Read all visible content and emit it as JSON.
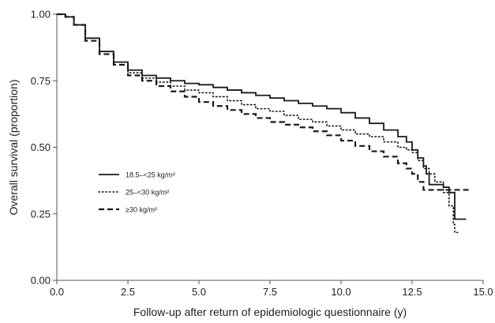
{
  "chart_data": {
    "type": "line",
    "title": "",
    "xlabel": "Follow-up after return of epidemiologic questionnaire (y)",
    "ylabel": "Overall survival (proportion)",
    "xlim": [
      0,
      15
    ],
    "ylim": [
      0,
      1
    ],
    "x_ticks": [
      0,
      2.5,
      5,
      7.5,
      10,
      12.5,
      15
    ],
    "x_tick_labels": [
      "0.0",
      "2.5",
      "5.0",
      "7.5",
      "10.0",
      "12.5",
      "15.0"
    ],
    "y_ticks": [
      0,
      0.25,
      0.5,
      0.75,
      1
    ],
    "y_tick_labels": [
      "0.00",
      "0.25",
      "0.50",
      "0.75",
      "1.00"
    ],
    "grid": false,
    "legend_position": "center-left",
    "series": [
      {
        "name": "18.5–<25 kg/m²",
        "style": "solid",
        "color": "#1a1a1a",
        "x": [
          0,
          0.3,
          0.6,
          1.0,
          1.5,
          2.0,
          2.5,
          3.0,
          3.5,
          4.0,
          4.5,
          5.0,
          5.5,
          6.0,
          6.5,
          7.0,
          7.5,
          8.0,
          8.5,
          9.0,
          9.5,
          10.0,
          10.5,
          11.0,
          11.5,
          12.0,
          12.3,
          12.5,
          12.7,
          12.9,
          13.0,
          13.1,
          13.6,
          13.8,
          14.0,
          14.1,
          14.4
        ],
        "y": [
          1.0,
          0.99,
          0.96,
          0.91,
          0.86,
          0.82,
          0.79,
          0.77,
          0.76,
          0.75,
          0.74,
          0.735,
          0.725,
          0.715,
          0.705,
          0.695,
          0.685,
          0.675,
          0.665,
          0.655,
          0.645,
          0.63,
          0.61,
          0.59,
          0.565,
          0.54,
          0.52,
          0.49,
          0.46,
          0.43,
          0.4,
          0.36,
          0.35,
          0.33,
          0.23,
          0.23,
          0.23
        ]
      },
      {
        "name": "25–<30 kg/m²",
        "style": "dotted",
        "color": "#1a1a1a",
        "x": [
          0,
          0.3,
          0.6,
          1.0,
          1.5,
          2.0,
          2.5,
          3.0,
          3.5,
          4.0,
          4.5,
          5.0,
          5.5,
          6.0,
          6.5,
          7.0,
          7.5,
          8.0,
          8.5,
          9.0,
          9.5,
          10.0,
          10.5,
          11.0,
          11.5,
          12.0,
          12.3,
          12.5,
          12.7,
          12.9,
          13.1,
          13.3,
          13.6,
          13.8,
          13.95,
          14.0,
          14.1
        ],
        "y": [
          1.0,
          0.99,
          0.96,
          0.91,
          0.86,
          0.82,
          0.78,
          0.76,
          0.745,
          0.73,
          0.715,
          0.705,
          0.69,
          0.675,
          0.66,
          0.645,
          0.635,
          0.62,
          0.605,
          0.595,
          0.58,
          0.565,
          0.55,
          0.54,
          0.52,
          0.5,
          0.49,
          0.48,
          0.45,
          0.42,
          0.4,
          0.37,
          0.33,
          0.28,
          0.21,
          0.18,
          0.18
        ]
      },
      {
        "name": "≥30 kg/m²",
        "style": "dashed",
        "color": "#1a1a1a",
        "x": [
          0,
          0.3,
          0.6,
          1.0,
          1.5,
          2.0,
          2.5,
          3.0,
          3.5,
          4.0,
          4.5,
          5.0,
          5.5,
          6.0,
          6.5,
          7.0,
          7.5,
          8.0,
          8.5,
          9.0,
          9.5,
          10.0,
          10.5,
          11.0,
          11.5,
          12.0,
          12.3,
          12.5,
          12.7,
          12.9,
          13.1,
          13.5,
          14.0,
          14.5
        ],
        "y": [
          1.0,
          0.99,
          0.96,
          0.9,
          0.85,
          0.81,
          0.77,
          0.75,
          0.73,
          0.71,
          0.69,
          0.67,
          0.655,
          0.64,
          0.625,
          0.61,
          0.595,
          0.585,
          0.575,
          0.56,
          0.545,
          0.525,
          0.505,
          0.485,
          0.465,
          0.44,
          0.42,
          0.4,
          0.37,
          0.34,
          0.34,
          0.34,
          0.34,
          0.34
        ]
      }
    ]
  }
}
